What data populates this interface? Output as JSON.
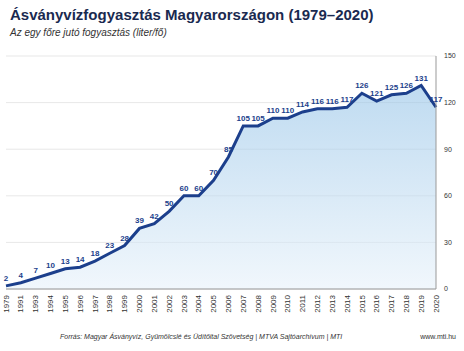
{
  "chart_data": {
    "type": "area",
    "title": "Ásványvízfogyasztás Magyarországon (1979–2020)",
    "subtitle": "Az egy főre jutó fogyasztás (liter/fő)",
    "categories": [
      "1979",
      "1991",
      "1993",
      "1994",
      "1995",
      "1996",
      "1997",
      "1998",
      "1999",
      "2000",
      "2001",
      "2002",
      "2003",
      "2004",
      "2005",
      "2006",
      "2007",
      "2008",
      "2009",
      "2010",
      "2011",
      "2012",
      "2013",
      "2014",
      "2015",
      "2016",
      "2017",
      "2018",
      "2019",
      "2020"
    ],
    "values": [
      2,
      4,
      7,
      10,
      13,
      14,
      18,
      23,
      28,
      39,
      42,
      50,
      60,
      60,
      70,
      85,
      105,
      105,
      110,
      110,
      114,
      116,
      116,
      117,
      126,
      121,
      125,
      126,
      131,
      117
    ],
    "color": "#1c3f8c",
    "ylim": [
      0,
      150
    ],
    "yticks": [
      0,
      30,
      60,
      90,
      120,
      150
    ],
    "grid": true,
    "data_labels": true,
    "source": "Forrás: Magyar Ásványvíz, Gyümölcslé és Üdítőital Szövetség | MTVA Sajtóarchívum | MTI",
    "credit": "www.mti.hu"
  }
}
